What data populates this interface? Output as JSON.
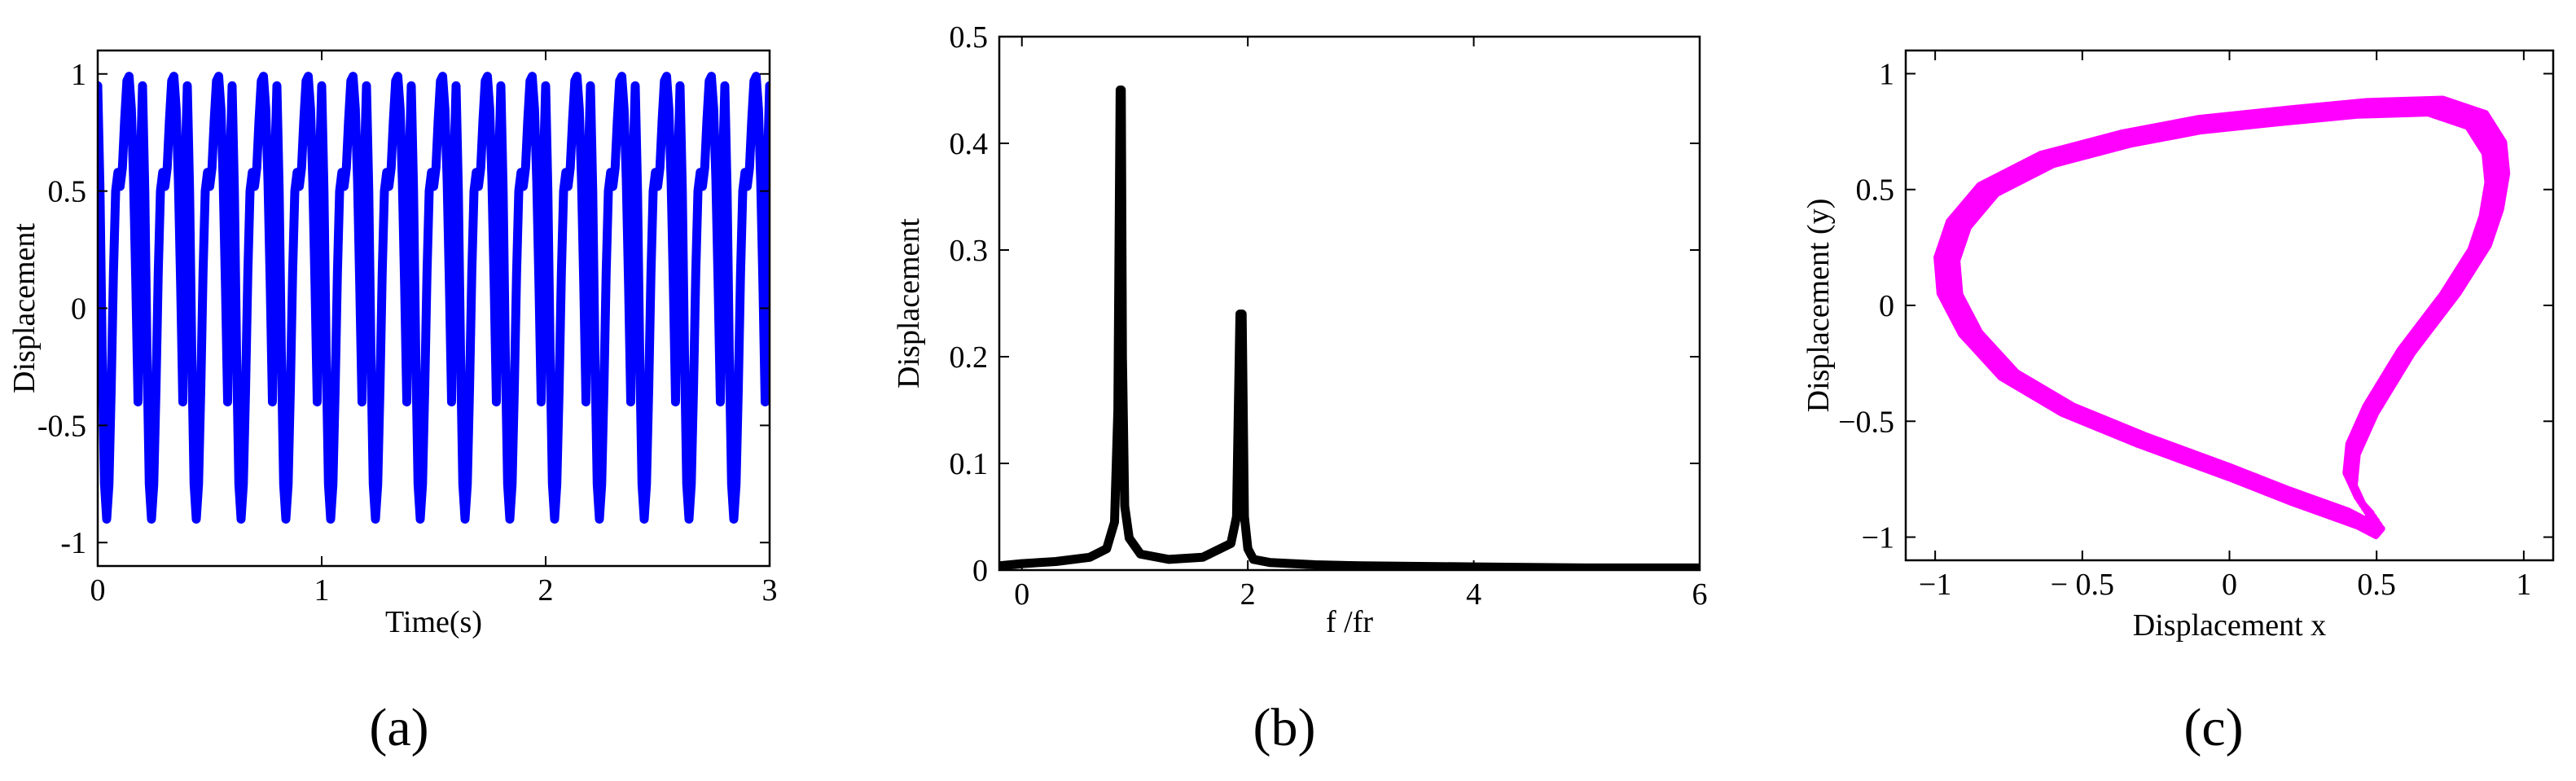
{
  "chart_data": [
    {
      "panel": "a",
      "type": "line",
      "xlabel": "Time(s)",
      "ylabel": "Displacement",
      "xlim": [
        0,
        3
      ],
      "ylim": [
        -1.1,
        1.1
      ],
      "xticks": [
        "0",
        "1",
        "2",
        "3"
      ],
      "yticks": [
        "-1",
        "-0.5",
        "0",
        "0.5",
        "1"
      ],
      "grid": false,
      "series": [
        {
          "color": "#0000ff",
          "period": 0.2,
          "x": [
            0,
            0.01,
            0.02,
            0.03,
            0.04,
            0.05,
            0.06,
            0.07,
            0.08,
            0.09,
            0.1,
            0.11,
            0.12,
            0.13,
            0.14,
            0.15,
            0.16,
            0.17,
            0.18,
            0.19,
            0.2
          ],
          "y": [
            0.95,
            0.5,
            -0.2,
            -0.75,
            -0.9,
            -0.75,
            -0.35,
            0.15,
            0.5,
            0.58,
            0.52,
            0.6,
            0.8,
            0.97,
            0.99,
            0.85,
            0.55,
            0.1,
            -0.4,
            0.6,
            0.95
          ]
        }
      ],
      "caption": "(a)"
    },
    {
      "panel": "b",
      "type": "line",
      "xlabel": "f /fr",
      "ylabel": "Displacement",
      "xlim": [
        -0.2,
        6
      ],
      "ylim": [
        0,
        0.5
      ],
      "xticks": [
        "0",
        "2",
        "4",
        "6"
      ],
      "yticks": [
        "0",
        "0.1",
        "0.2",
        "0.3",
        "0.4",
        "0.5"
      ],
      "grid": false,
      "series": [
        {
          "color": "#000000",
          "x": [
            -0.2,
            0.0,
            0.3,
            0.6,
            0.75,
            0.82,
            0.85,
            0.87,
            0.88,
            0.89,
            0.91,
            0.95,
            1.05,
            1.3,
            1.6,
            1.85,
            1.9,
            1.93,
            1.95,
            1.97,
            2.0,
            2.05,
            2.2,
            2.6,
            3.0,
            4.0,
            5.0,
            6.0
          ],
          "y": [
            0.004,
            0.006,
            0.008,
            0.012,
            0.02,
            0.045,
            0.15,
            0.45,
            0.45,
            0.2,
            0.06,
            0.03,
            0.015,
            0.01,
            0.012,
            0.025,
            0.05,
            0.24,
            0.24,
            0.05,
            0.02,
            0.01,
            0.007,
            0.005,
            0.004,
            0.003,
            0.002,
            0.002
          ]
        }
      ],
      "caption": "(b)"
    },
    {
      "panel": "c",
      "type": "line",
      "xlabel": "Displacement x",
      "ylabel": "Displacement (y)",
      "xlim": [
        -1.1,
        1.1
      ],
      "ylim": [
        -1.1,
        1.1
      ],
      "xticks": [
        "−1",
        "− 0.5",
        "0",
        "0.5",
        "1"
      ],
      "yticks": [
        "−1",
        "−0.5",
        "0",
        "0.5",
        "1"
      ],
      "grid": false,
      "series": [
        {
          "color": "#ff00ff",
          "closed": true,
          "x": [
            0.5,
            0.48,
            0.42,
            0.2,
            0.0,
            -0.3,
            -0.55,
            -0.75,
            -0.88,
            -0.95,
            -0.96,
            -0.92,
            -0.82,
            -0.62,
            -0.35,
            -0.1,
            0.2,
            0.45,
            0.7,
            0.84,
            0.9,
            0.91,
            0.89,
            0.85,
            0.75,
            0.6,
            0.48,
            0.42,
            0.41,
            0.45,
            0.5
          ],
          "y": [
            -0.93,
            -0.96,
            -0.92,
            -0.82,
            -0.72,
            -0.58,
            -0.45,
            -0.3,
            -0.12,
            0.05,
            0.2,
            0.35,
            0.5,
            0.63,
            0.72,
            0.78,
            0.82,
            0.85,
            0.86,
            0.8,
            0.68,
            0.55,
            0.4,
            0.25,
            0.05,
            -0.2,
            -0.45,
            -0.62,
            -0.75,
            -0.86,
            -0.93
          ]
        }
      ],
      "caption": "(c)"
    }
  ]
}
